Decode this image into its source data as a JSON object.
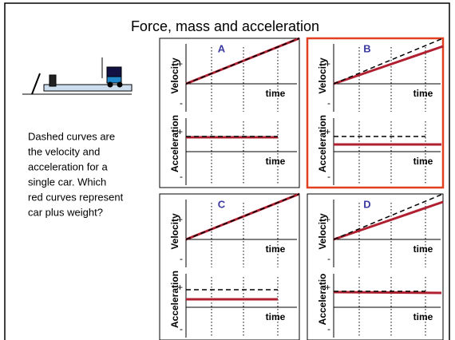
{
  "title": "Force, mass and acceleration",
  "description": [
    "Dashed curves are",
    "the velocity and",
    "acceleration for a",
    "single car.  Which",
    "red curves represent",
    "car plus weight?"
  ],
  "panels": [
    {
      "label": "A",
      "velocity_axis": "Velocity",
      "acceleration_axis": "Acceleration",
      "time_axis": "time",
      "plus": "+",
      "minus": "-"
    },
    {
      "label": "B",
      "velocity_axis": "Velocity",
      "acceleration_axis": "Acceleration",
      "time_axis": "time",
      "plus": "+",
      "minus": "-"
    },
    {
      "label": "C",
      "velocity_axis": "Velocity",
      "acceleration_axis": "Acceleration",
      "time_axis": "time",
      "plus": "+",
      "minus": "-"
    },
    {
      "label": "D",
      "velocity_axis": "Velocity",
      "acceleration_axis": "Acceleratio",
      "time_axis": "time",
      "plus": "+",
      "minus": "-"
    }
  ]
}
